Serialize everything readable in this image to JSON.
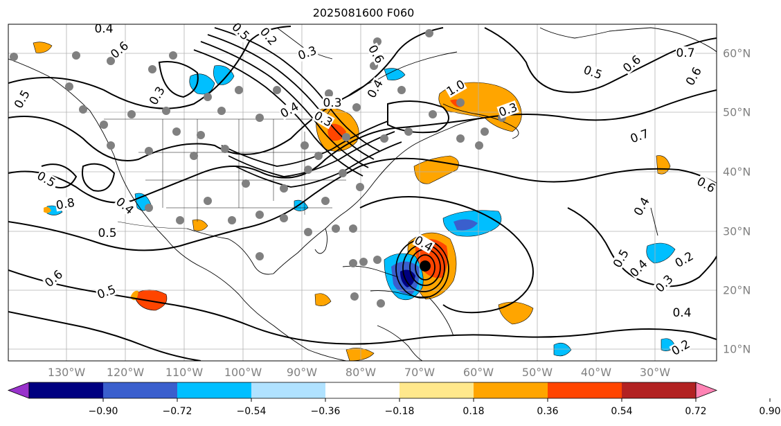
{
  "title": "2025081600 F060",
  "map": {
    "lon_ticks": [
      "130°W",
      "120°W",
      "110°W",
      "100°W",
      "90°W",
      "80°W",
      "70°W",
      "60°W",
      "50°W",
      "40°W",
      "30°W"
    ],
    "lat_ticks": [
      "60°N",
      "50°N",
      "40°N",
      "30°N",
      "20°N",
      "10°N"
    ],
    "contour_labels": [
      "0.4",
      "0.6",
      "0.5",
      "0.2",
      "0.3",
      "0.6",
      "0.7",
      "0.6",
      "0.5",
      "0.6",
      "0.5",
      "0.4",
      "0.3",
      "0.4",
      "1.0",
      "0.3",
      "0.7",
      "0.5",
      "0.8",
      "0.5",
      "0.4",
      "0.3",
      "0.6",
      "0.5",
      "0.4",
      "0.5",
      "0.4",
      "0.3",
      "0.2",
      "0.4",
      "0.6",
      "0.2",
      "0.4",
      "0.3"
    ],
    "land_color": "#000000",
    "contour_color": "#000000",
    "grid_color": "#808080",
    "marker_color": "#808080",
    "storm_center_color": "#000000"
  },
  "colorbar": {
    "colors": [
      "#9932cc",
      "#000080",
      "#3a5fcd",
      "#00bfff",
      "#b0e2ff",
      "#ffffff",
      "#ffe88c",
      "#ffa500",
      "#ff4500",
      "#b22222",
      "#ff83b4"
    ],
    "labels": [
      "−0.90",
      "−0.72",
      "−0.54",
      "−0.36",
      "−0.18",
      "0.18",
      "0.36",
      "0.54",
      "0.72",
      "0.90"
    ]
  }
}
